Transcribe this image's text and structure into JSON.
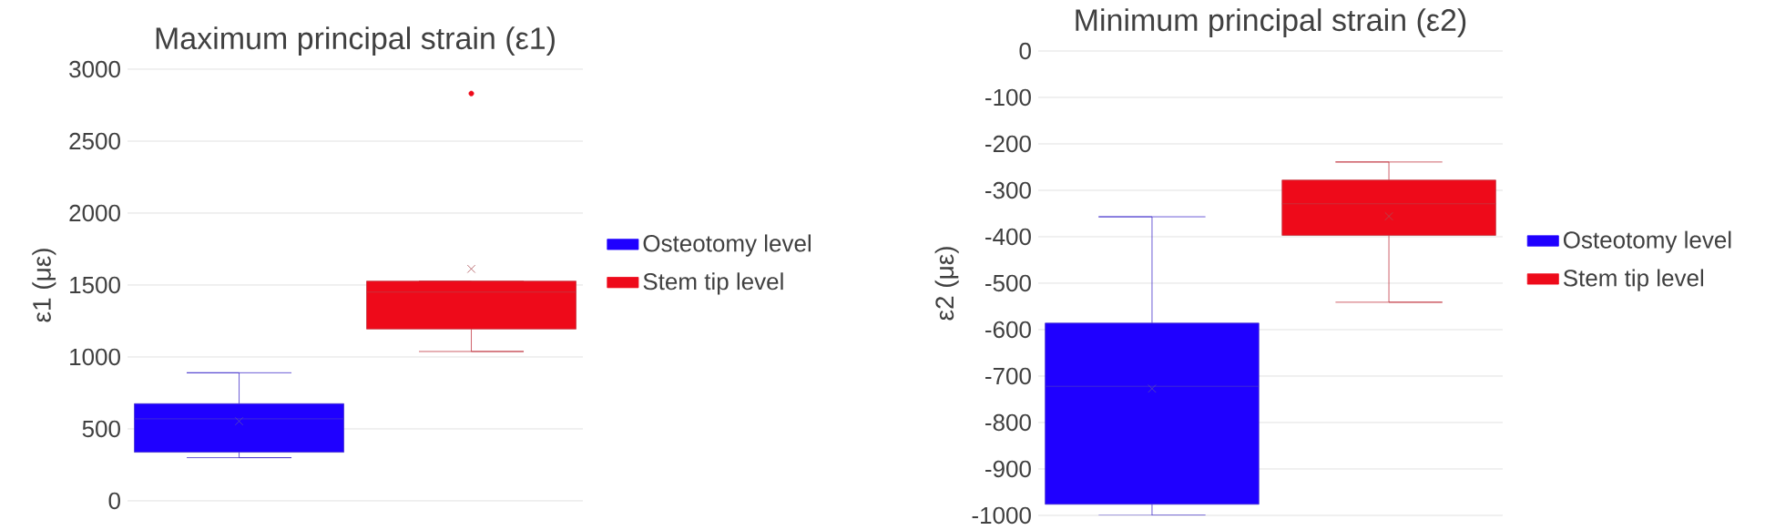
{
  "chart_data": [
    {
      "type": "box",
      "title": "Maximum principal strain (ε1)",
      "ylabel": "ε1 (με)",
      "categories": [
        null
      ],
      "ylim": [
        0,
        3000
      ],
      "yticks": [
        0,
        500,
        1000,
        1500,
        2000,
        2500,
        3000
      ],
      "grid": "y",
      "legend": "right",
      "tick_labels": "y",
      "series": [
        {
          "name": "Osteotomy level",
          "color": "#1f00ff",
          "boxes": [
            {
              "low": 300,
              "q1": 338,
              "median": 570,
              "q3": 675,
              "high": 890,
              "mean": 553
            }
          ]
        },
        {
          "name": "Stem tip level",
          "color": "#ee0a1a",
          "boxes": [
            {
              "low": 1038,
              "q1": 1194,
              "median": 1451,
              "q3": 1527,
              "high": 1527,
              "mean": 1612,
              "outliers": [
                2831
              ]
            }
          ]
        }
      ]
    },
    {
      "type": "box",
      "title": "Minimum principal strain (ε2)",
      "ylabel": "ε2 (με)",
      "categories": [
        null
      ],
      "ylim": [
        -1000,
        0
      ],
      "yticks": [
        -1000,
        -900,
        -800,
        -700,
        -600,
        -500,
        -400,
        -300,
        -200,
        -100,
        0
      ],
      "grid": "y",
      "legend": "right",
      "tick_labels": "y",
      "series": [
        {
          "name": "Osteotomy level",
          "color": "#1f00ff",
          "boxes": [
            {
              "low": -1000,
              "q1": -976,
              "median": -722,
              "q3": -586,
              "high": -357,
              "mean": -727
            }
          ]
        },
        {
          "name": "Stem tip level",
          "color": "#ee0a1a",
          "boxes": [
            {
              "low": -541,
              "q1": -397,
              "median": -329,
              "q3": -278,
              "high": -239,
              "mean": -356
            }
          ]
        }
      ]
    }
  ]
}
